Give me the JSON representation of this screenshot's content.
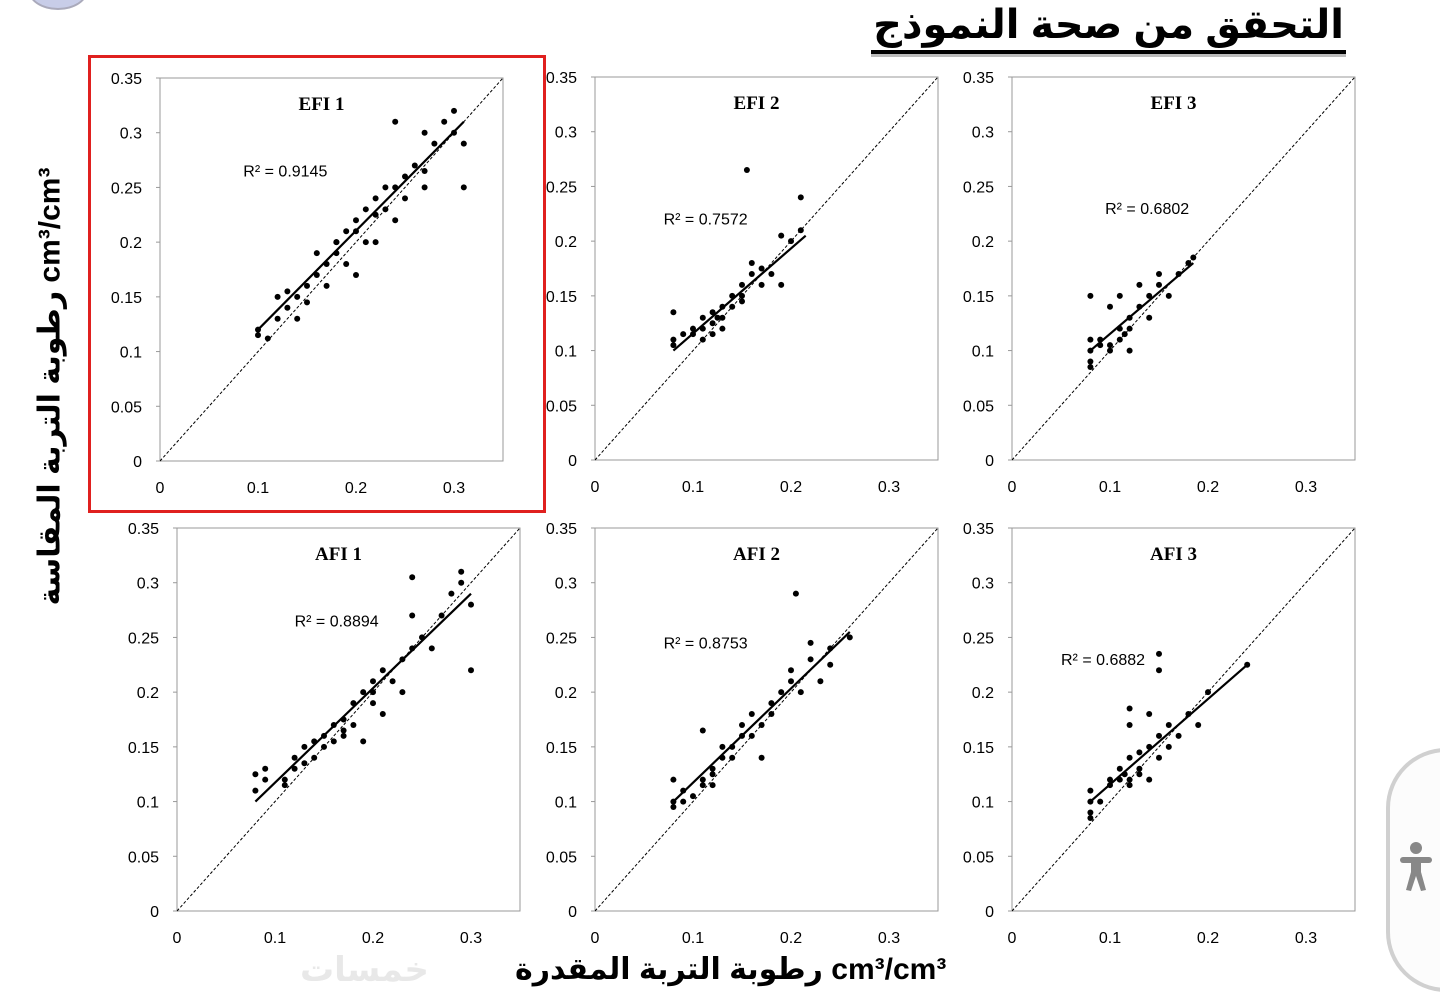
{
  "title": "التحقق من صحة النموذج",
  "y_axis_label": "رطوبة التربة المقاسة cm³/cm³",
  "x_axis_label": "رطوبة التربة المقدرة   cm³/cm³",
  "watermark": "خمسات",
  "accent_colors": {
    "highlight_box": "#e0201f",
    "points": "#000000"
  },
  "accessibility_icon": "accessibility-person-icon",
  "chart_data": [
    {
      "type": "scatter",
      "title": "EFI 1",
      "r2_label": "R² = 0.9145",
      "xlim": [
        0,
        0.35
      ],
      "ylim": [
        0,
        0.35
      ],
      "xticks": [
        "0",
        "0.1",
        "0.2",
        "0.3"
      ],
      "yticks": [
        "0",
        "0.05",
        "0.1",
        "0.15",
        "0.2",
        "0.25",
        "0.3",
        "0.35"
      ],
      "trend": [
        [
          0.1,
          0.12
        ],
        [
          0.31,
          0.31
        ]
      ],
      "highlighted": true,
      "points": [
        [
          0.1,
          0.12
        ],
        [
          0.1,
          0.115
        ],
        [
          0.11,
          0.112
        ],
        [
          0.12,
          0.13
        ],
        [
          0.12,
          0.15
        ],
        [
          0.13,
          0.14
        ],
        [
          0.13,
          0.155
        ],
        [
          0.14,
          0.15
        ],
        [
          0.15,
          0.16
        ],
        [
          0.15,
          0.145
        ],
        [
          0.16,
          0.17
        ],
        [
          0.16,
          0.19
        ],
        [
          0.17,
          0.16
        ],
        [
          0.17,
          0.18
        ],
        [
          0.18,
          0.19
        ],
        [
          0.18,
          0.2
        ],
        [
          0.19,
          0.21
        ],
        [
          0.19,
          0.18
        ],
        [
          0.2,
          0.22
        ],
        [
          0.2,
          0.21
        ],
        [
          0.2,
          0.17
        ],
        [
          0.21,
          0.23
        ],
        [
          0.21,
          0.2
        ],
        [
          0.22,
          0.24
        ],
        [
          0.22,
          0.225
        ],
        [
          0.23,
          0.23
        ],
        [
          0.23,
          0.25
        ],
        [
          0.24,
          0.22
        ],
        [
          0.24,
          0.25
        ],
        [
          0.25,
          0.26
        ],
        [
          0.25,
          0.24
        ],
        [
          0.26,
          0.27
        ],
        [
          0.27,
          0.265
        ],
        [
          0.27,
          0.25
        ],
        [
          0.28,
          0.29
        ],
        [
          0.29,
          0.31
        ],
        [
          0.3,
          0.32
        ],
        [
          0.31,
          0.29
        ],
        [
          0.3,
          0.3
        ],
        [
          0.31,
          0.25
        ],
        [
          0.24,
          0.31
        ],
        [
          0.27,
          0.3
        ],
        [
          0.14,
          0.13
        ],
        [
          0.18,
          0.2
        ],
        [
          0.22,
          0.2
        ]
      ]
    },
    {
      "type": "scatter",
      "title": "EFI 2",
      "r2_label": "R² = 0.7572",
      "xlim": [
        0,
        0.35
      ],
      "ylim": [
        0,
        0.35
      ],
      "xticks": [
        "0",
        "0.1",
        "0.2",
        "0.3"
      ],
      "yticks": [
        "0",
        "0.05",
        "0.1",
        "0.15",
        "0.2",
        "0.25",
        "0.3",
        "0.35"
      ],
      "trend": [
        [
          0.08,
          0.1
        ],
        [
          0.215,
          0.205
        ]
      ],
      "points": [
        [
          0.08,
          0.11
        ],
        [
          0.08,
          0.105
        ],
        [
          0.09,
          0.115
        ],
        [
          0.08,
          0.135
        ],
        [
          0.1,
          0.12
        ],
        [
          0.1,
          0.115
        ],
        [
          0.11,
          0.12
        ],
        [
          0.11,
          0.13
        ],
        [
          0.12,
          0.125
        ],
        [
          0.12,
          0.135
        ],
        [
          0.12,
          0.115
        ],
        [
          0.13,
          0.13
        ],
        [
          0.13,
          0.14
        ],
        [
          0.13,
          0.12
        ],
        [
          0.14,
          0.14
        ],
        [
          0.14,
          0.15
        ],
        [
          0.15,
          0.15
        ],
        [
          0.15,
          0.16
        ],
        [
          0.15,
          0.145
        ],
        [
          0.16,
          0.17
        ],
        [
          0.16,
          0.18
        ],
        [
          0.17,
          0.16
        ],
        [
          0.17,
          0.175
        ],
        [
          0.18,
          0.17
        ],
        [
          0.19,
          0.16
        ],
        [
          0.2,
          0.2
        ],
        [
          0.21,
          0.24
        ],
        [
          0.21,
          0.21
        ],
        [
          0.155,
          0.265
        ],
        [
          0.19,
          0.205
        ],
        [
          0.11,
          0.11
        ],
        [
          0.125,
          0.13
        ]
      ]
    },
    {
      "type": "scatter",
      "title": "EFI 3",
      "r2_label": "R² = 0.6802",
      "xlim": [
        0,
        0.35
      ],
      "ylim": [
        0,
        0.35
      ],
      "xticks": [
        "0",
        "0.1",
        "0.2",
        "0.3"
      ],
      "yticks": [
        "0",
        "0.05",
        "0.1",
        "0.15",
        "0.2",
        "0.25",
        "0.3",
        "0.35"
      ],
      "trend": [
        [
          0.08,
          0.1
        ],
        [
          0.185,
          0.18
        ]
      ],
      "points": [
        [
          0.08,
          0.1
        ],
        [
          0.08,
          0.09
        ],
        [
          0.08,
          0.085
        ],
        [
          0.08,
          0.11
        ],
        [
          0.08,
          0.15
        ],
        [
          0.09,
          0.105
        ],
        [
          0.09,
          0.11
        ],
        [
          0.1,
          0.1
        ],
        [
          0.1,
          0.14
        ],
        [
          0.11,
          0.12
        ],
        [
          0.11,
          0.11
        ],
        [
          0.11,
          0.15
        ],
        [
          0.12,
          0.12
        ],
        [
          0.12,
          0.13
        ],
        [
          0.12,
          0.1
        ],
        [
          0.13,
          0.14
        ],
        [
          0.13,
          0.16
        ],
        [
          0.14,
          0.15
        ],
        [
          0.14,
          0.13
        ],
        [
          0.15,
          0.17
        ],
        [
          0.15,
          0.16
        ],
        [
          0.16,
          0.15
        ],
        [
          0.17,
          0.17
        ],
        [
          0.18,
          0.18
        ],
        [
          0.185,
          0.185
        ],
        [
          0.115,
          0.115
        ],
        [
          0.1,
          0.105
        ]
      ]
    },
    {
      "type": "scatter",
      "title": "AFI 1",
      "r2_label": "R² = 0.8894",
      "xlim": [
        0,
        0.35
      ],
      "ylim": [
        0,
        0.35
      ],
      "xticks": [
        "0",
        "0.1",
        "0.2",
        "0.3"
      ],
      "yticks": [
        "0",
        "0.05",
        "0.1",
        "0.15",
        "0.2",
        "0.25",
        "0.3",
        "0.35"
      ],
      "trend": [
        [
          0.08,
          0.1
        ],
        [
          0.3,
          0.29
        ]
      ],
      "points": [
        [
          0.08,
          0.125
        ],
        [
          0.08,
          0.11
        ],
        [
          0.09,
          0.12
        ],
        [
          0.09,
          0.13
        ],
        [
          0.11,
          0.12
        ],
        [
          0.11,
          0.115
        ],
        [
          0.12,
          0.13
        ],
        [
          0.12,
          0.14
        ],
        [
          0.13,
          0.15
        ],
        [
          0.13,
          0.135
        ],
        [
          0.14,
          0.14
        ],
        [
          0.14,
          0.155
        ],
        [
          0.15,
          0.16
        ],
        [
          0.15,
          0.15
        ],
        [
          0.16,
          0.17
        ],
        [
          0.16,
          0.155
        ],
        [
          0.17,
          0.175
        ],
        [
          0.17,
          0.16
        ],
        [
          0.18,
          0.19
        ],
        [
          0.18,
          0.17
        ],
        [
          0.19,
          0.2
        ],
        [
          0.19,
          0.155
        ],
        [
          0.2,
          0.21
        ],
        [
          0.2,
          0.19
        ],
        [
          0.21,
          0.22
        ],
        [
          0.21,
          0.18
        ],
        [
          0.22,
          0.21
        ],
        [
          0.23,
          0.23
        ],
        [
          0.23,
          0.2
        ],
        [
          0.24,
          0.24
        ],
        [
          0.24,
          0.27
        ],
        [
          0.25,
          0.25
        ],
        [
          0.26,
          0.24
        ],
        [
          0.27,
          0.27
        ],
        [
          0.28,
          0.29
        ],
        [
          0.29,
          0.3
        ],
        [
          0.29,
          0.31
        ],
        [
          0.3,
          0.28
        ],
        [
          0.3,
          0.22
        ],
        [
          0.24,
          0.305
        ],
        [
          0.2,
          0.2
        ],
        [
          0.17,
          0.165
        ]
      ]
    },
    {
      "type": "scatter",
      "title": "AFI 2",
      "r2_label": "R² = 0.8753",
      "xlim": [
        0,
        0.35
      ],
      "ylim": [
        0,
        0.35
      ],
      "xticks": [
        "0",
        "0.1",
        "0.2",
        "0.3"
      ],
      "yticks": [
        "0",
        "0.05",
        "0.1",
        "0.15",
        "0.2",
        "0.25",
        "0.3",
        "0.35"
      ],
      "trend": [
        [
          0.08,
          0.1
        ],
        [
          0.26,
          0.255
        ]
      ],
      "points": [
        [
          0.08,
          0.1
        ],
        [
          0.08,
          0.095
        ],
        [
          0.08,
          0.12
        ],
        [
          0.09,
          0.11
        ],
        [
          0.09,
          0.1
        ],
        [
          0.1,
          0.105
        ],
        [
          0.11,
          0.115
        ],
        [
          0.11,
          0.12
        ],
        [
          0.12,
          0.13
        ],
        [
          0.12,
          0.125
        ],
        [
          0.13,
          0.14
        ],
        [
          0.13,
          0.15
        ],
        [
          0.14,
          0.14
        ],
        [
          0.14,
          0.15
        ],
        [
          0.15,
          0.16
        ],
        [
          0.15,
          0.17
        ],
        [
          0.16,
          0.16
        ],
        [
          0.16,
          0.18
        ],
        [
          0.17,
          0.14
        ],
        [
          0.17,
          0.17
        ],
        [
          0.18,
          0.19
        ],
        [
          0.18,
          0.18
        ],
        [
          0.19,
          0.2
        ],
        [
          0.2,
          0.22
        ],
        [
          0.2,
          0.21
        ],
        [
          0.21,
          0.2
        ],
        [
          0.22,
          0.23
        ],
        [
          0.22,
          0.245
        ],
        [
          0.23,
          0.21
        ],
        [
          0.24,
          0.24
        ],
        [
          0.24,
          0.225
        ],
        [
          0.26,
          0.25
        ],
        [
          0.205,
          0.29
        ],
        [
          0.11,
          0.165
        ],
        [
          0.12,
          0.115
        ]
      ]
    },
    {
      "type": "scatter",
      "title": "AFI 3",
      "r2_label": "R² = 0.6882",
      "xlim": [
        0,
        0.35
      ],
      "ylim": [
        0,
        0.35
      ],
      "xticks": [
        "0",
        "0.1",
        "0.2",
        "0.3"
      ],
      "yticks": [
        "0",
        "0.05",
        "0.1",
        "0.15",
        "0.2",
        "0.25",
        "0.3",
        "0.35"
      ],
      "trend": [
        [
          0.08,
          0.1
        ],
        [
          0.24,
          0.225
        ]
      ],
      "points": [
        [
          0.08,
          0.09
        ],
        [
          0.08,
          0.085
        ],
        [
          0.08,
          0.1
        ],
        [
          0.08,
          0.11
        ],
        [
          0.09,
          0.1
        ],
        [
          0.1,
          0.115
        ],
        [
          0.1,
          0.12
        ],
        [
          0.11,
          0.12
        ],
        [
          0.11,
          0.13
        ],
        [
          0.12,
          0.12
        ],
        [
          0.12,
          0.115
        ],
        [
          0.12,
          0.14
        ],
        [
          0.12,
          0.17
        ],
        [
          0.12,
          0.185
        ],
        [
          0.13,
          0.13
        ],
        [
          0.13,
          0.145
        ],
        [
          0.14,
          0.12
        ],
        [
          0.14,
          0.15
        ],
        [
          0.14,
          0.18
        ],
        [
          0.15,
          0.16
        ],
        [
          0.15,
          0.14
        ],
        [
          0.15,
          0.22
        ],
        [
          0.15,
          0.235
        ],
        [
          0.16,
          0.17
        ],
        [
          0.16,
          0.15
        ],
        [
          0.17,
          0.16
        ],
        [
          0.18,
          0.18
        ],
        [
          0.19,
          0.17
        ],
        [
          0.2,
          0.2
        ],
        [
          0.24,
          0.225
        ],
        [
          0.115,
          0.125
        ],
        [
          0.13,
          0.125
        ]
      ]
    }
  ]
}
